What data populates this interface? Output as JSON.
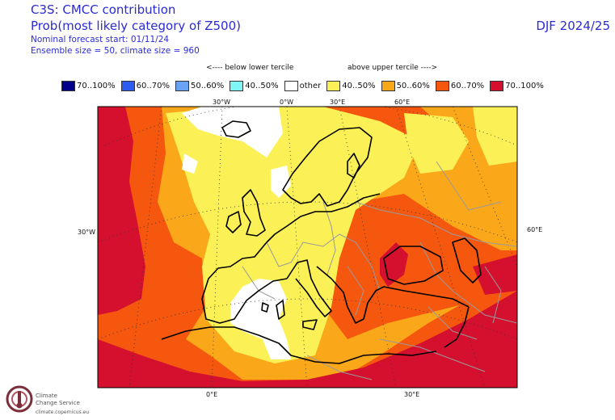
{
  "header": {
    "title": "C3S: CMCC contribution",
    "subtitle": "Prob(most likely category of Z500)",
    "forecast_start": "Nominal forecast start: 01/11/24",
    "ensemble": "Ensemble size = 50, climate size = 960",
    "season": "DJF 2024/25"
  },
  "tercile_labels": {
    "below": "<---- below lower tercile",
    "above": "above upper tercile ---->"
  },
  "legend": [
    {
      "label": "70..100%",
      "color": "#00008b"
    },
    {
      "label": "60..70%",
      "color": "#2e5cf0"
    },
    {
      "label": "50..60%",
      "color": "#6aa3f5"
    },
    {
      "label": "40..50%",
      "color": "#7ff5f5"
    },
    {
      "label": "other",
      "color": "#ffffff"
    },
    {
      "label": "40..50%",
      "color": "#fbf055"
    },
    {
      "label": "50..60%",
      "color": "#fba71a"
    },
    {
      "label": "60..70%",
      "color": "#f5570f"
    },
    {
      "label": "70..100%",
      "color": "#d4102e"
    }
  ],
  "axes": {
    "top": [
      "30°W",
      "0°W",
      "30°E",
      "60°E"
    ],
    "bottom": [
      "0°E",
      "30°E"
    ],
    "left": "30°W",
    "right": "60°E"
  },
  "logo": {
    "line1": "Climate",
    "line2": "Change Service",
    "url": "climate.copernicus.eu"
  }
}
